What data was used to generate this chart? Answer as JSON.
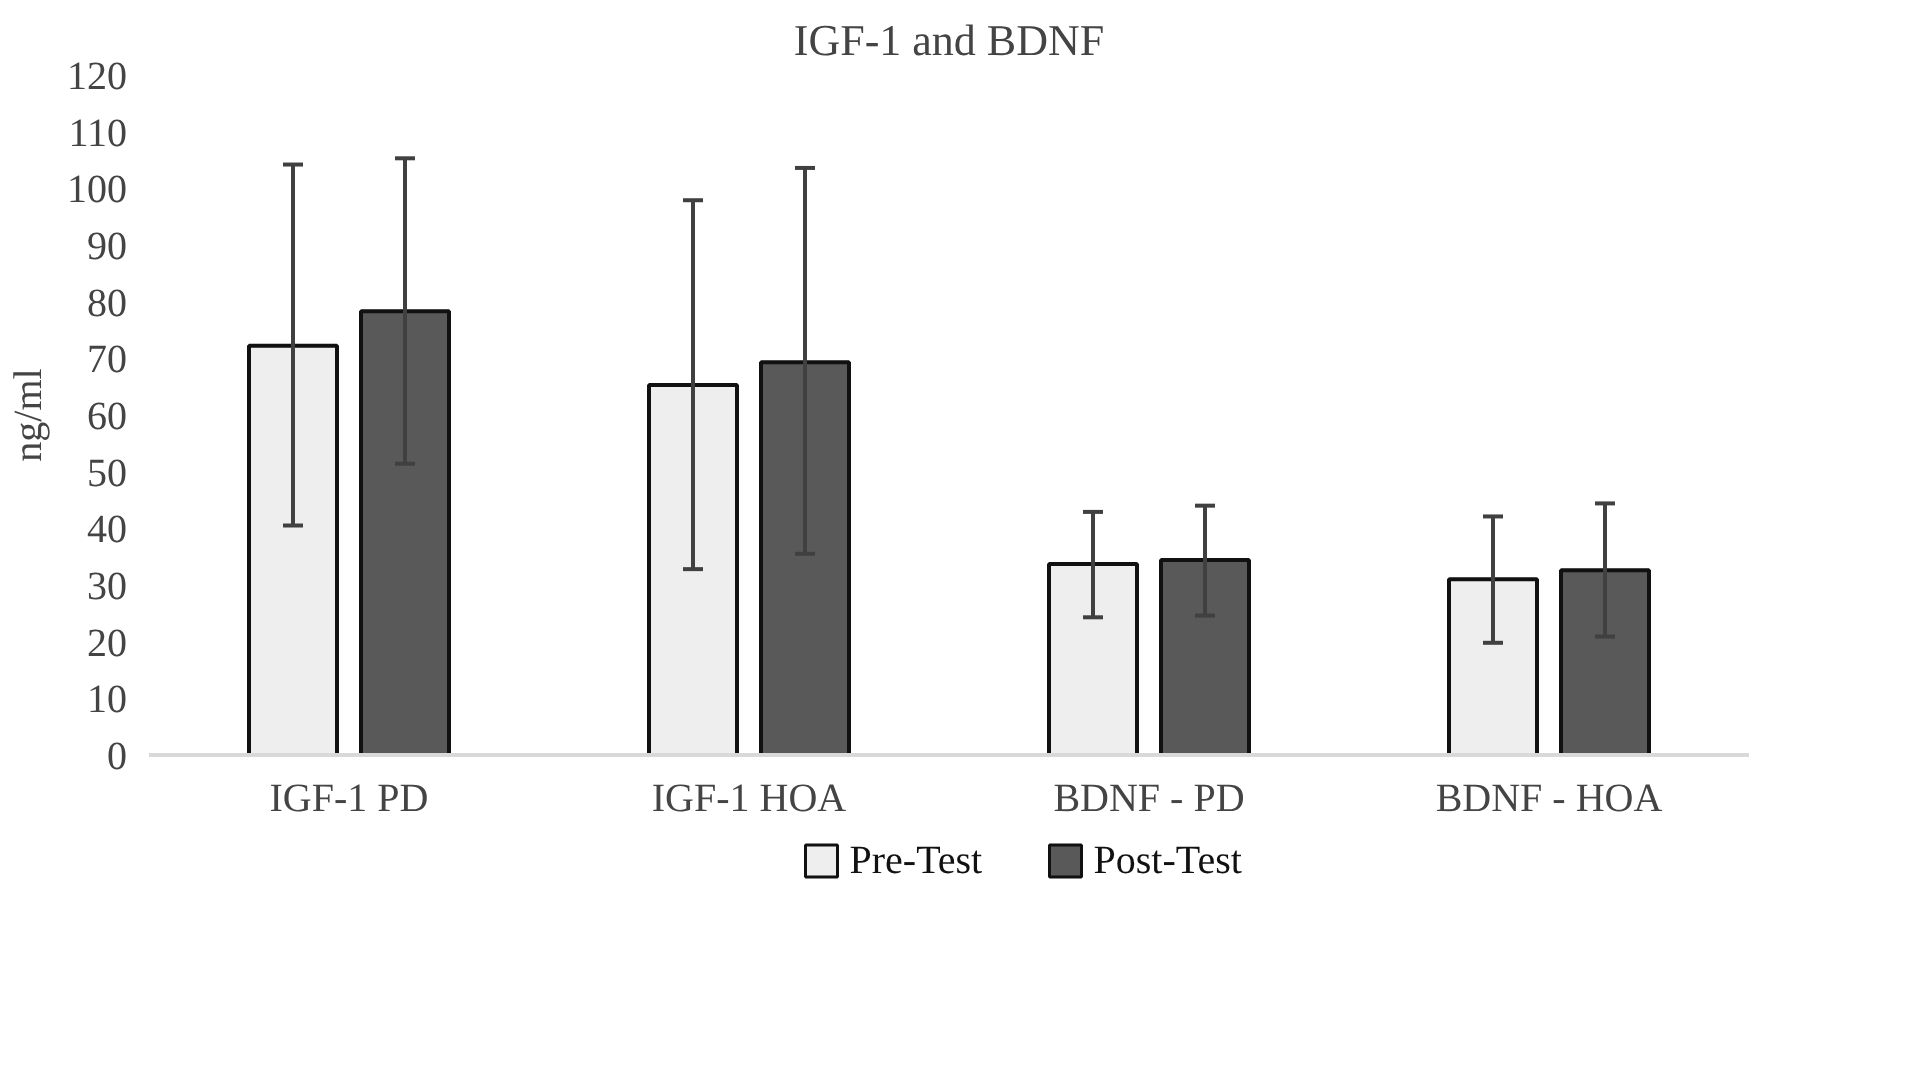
{
  "chart_data": {
    "type": "bar",
    "title": "IGF-1 and BDNF",
    "ylabel": "ng/ml",
    "categories": [
      "IGF-1 PD",
      "IGF-1 HOA",
      "BDNF - PD",
      "BDNF - HOA"
    ],
    "series": [
      {
        "name": "Pre-Test",
        "color": "#eeeeee",
        "values": [
          72.2,
          65.3,
          33.7,
          31.0
        ],
        "errors": [
          [
            40.5,
            104.2
          ],
          [
            32.8,
            97.9
          ],
          [
            24.3,
            42.9
          ],
          [
            19.8,
            42.1
          ]
        ]
      },
      {
        "name": "Post-Test",
        "color": "#595959",
        "values": [
          78.3,
          69.3,
          34.4,
          32.6
        ],
        "errors": [
          [
            51.4,
            105.3
          ],
          [
            35.5,
            103.6
          ],
          [
            24.6,
            44.0
          ],
          [
            20.9,
            44.4
          ]
        ]
      }
    ],
    "ylim": [
      0,
      120
    ],
    "yticks": [
      0,
      10,
      20,
      30,
      40,
      50,
      60,
      70,
      80,
      90,
      100,
      110,
      120
    ],
    "grid": false,
    "legend": "bottom"
  }
}
